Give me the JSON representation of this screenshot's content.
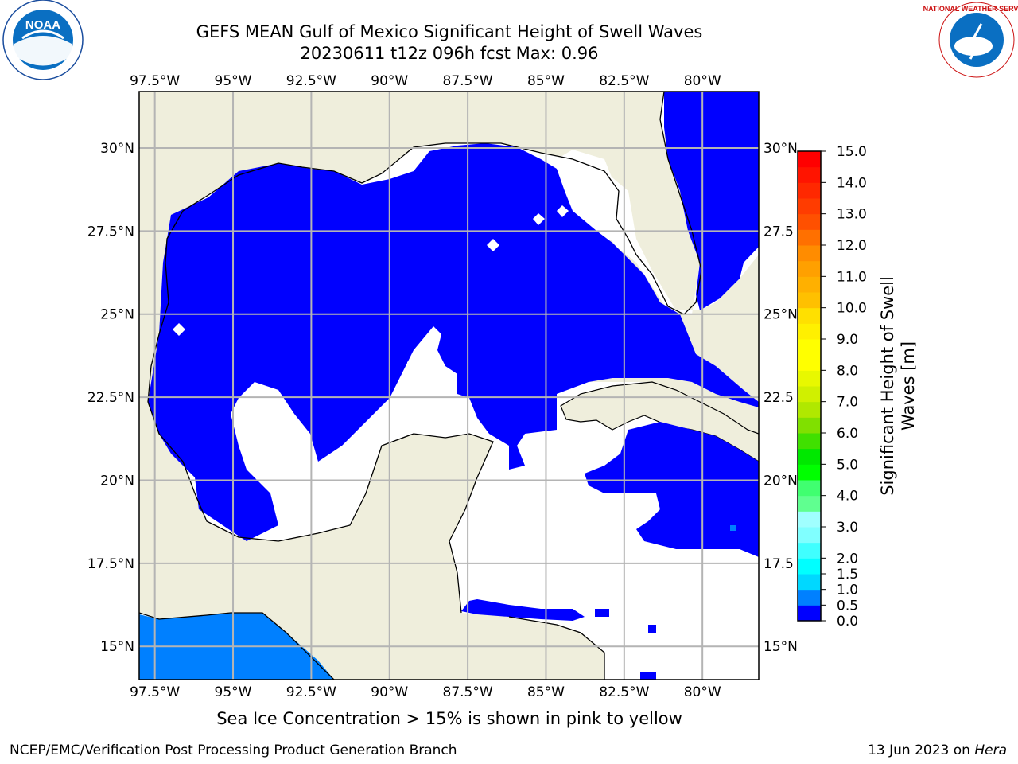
{
  "header": {
    "title_line1": "GEFS MEAN Gulf of Mexico Significant Height of Swell Waves",
    "title_line2": "20230611 t12z 096h fcst   Max: 0.96"
  },
  "logos": {
    "left": "NOAA",
    "right": "NATIONAL WEATHER SERVICE"
  },
  "colorbar": {
    "label_line1": "Significant Height of Swell",
    "label_line2": "Waves [m]",
    "levels": [
      0.0,
      0.5,
      1.0,
      1.5,
      2.0,
      2.5,
      3.0,
      3.5,
      4.0,
      4.5,
      5.0,
      5.5,
      6.0,
      6.5,
      7.0,
      7.5,
      8.0,
      8.5,
      9.0,
      9.5,
      10.0,
      10.5,
      11.0,
      11.5,
      12.0,
      12.5,
      13.0,
      13.5,
      14.0,
      14.5,
      15.0
    ],
    "tick_labels": [
      "0.0",
      "0.5",
      "1.0",
      "1.5",
      "2.0",
      "3.0",
      "4.0",
      "5.0",
      "6.0",
      "7.0",
      "8.0",
      "9.0",
      "10.0",
      "11.0",
      "12.0",
      "13.0",
      "14.0",
      "15.0"
    ],
    "tick_values": [
      0.0,
      0.5,
      1.0,
      1.5,
      2.0,
      3.0,
      4.0,
      5.0,
      6.0,
      7.0,
      8.0,
      9.0,
      10.0,
      11.0,
      12.0,
      13.0,
      14.0,
      15.0
    ],
    "colors": [
      "#0000ff",
      "#0080ff",
      "#00d8ff",
      "#00ffff",
      "#40ffff",
      "#80ffff",
      "#a0ffff",
      "#60ff90",
      "#40ff70",
      "#00ff00",
      "#00e800",
      "#40e000",
      "#80e000",
      "#b0e800",
      "#d0f000",
      "#e8f800",
      "#ffff00",
      "#ffff00",
      "#fff000",
      "#ffe000",
      "#ffc000",
      "#ffb000",
      "#ffa000",
      "#ff8c00",
      "#ff7000",
      "#ff5000",
      "#ff3c00",
      "#ff2800",
      "#ff1400",
      "#ff0000"
    ]
  },
  "chart_data": {
    "type": "map",
    "x_ticks": [
      "97.5°W",
      "95°W",
      "92.5°W",
      "90°W",
      "87.5°W",
      "85°W",
      "82.5°W",
      "80°W"
    ],
    "x_tick_values": [
      -97.5,
      -95,
      -92.5,
      -90,
      -87.5,
      -85,
      -82.5,
      -80
    ],
    "y_ticks": [
      "15°N",
      "17.5°N",
      "20°N",
      "22.5°N",
      "25°N",
      "27.5°N",
      "30°N"
    ],
    "y_tick_values": [
      15,
      17.5,
      20,
      22.5,
      25,
      27.5,
      30
    ],
    "y_ticks_right": [
      "15°N",
      "17.5",
      "20°N",
      "22.5",
      "25°N",
      "27.5",
      "30°N"
    ],
    "lon_range": [
      -98,
      -78.2
    ],
    "lat_range": [
      14,
      31.7
    ],
    "grid": true,
    "max_value": 0.96
  },
  "footer": {
    "note": "Sea Ice Concentration > 15% is shown in pink to yellow",
    "credit": "NCEP/EMC/Verification Post Processing Product Generation Branch",
    "date_prefix": "13 Jun 2023 on ",
    "date_host": "Hera"
  }
}
